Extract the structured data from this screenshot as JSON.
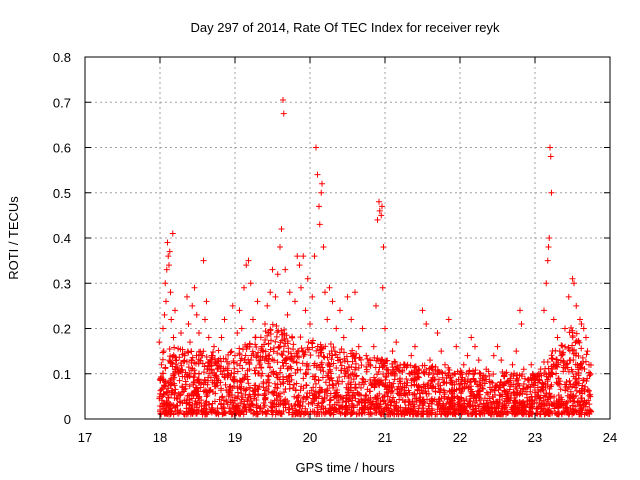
{
  "chart_data": {
    "type": "scatter",
    "title": "Day 297 of 2014, Rate Of TEC Index for receiver reyk",
    "xlabel": "GPS time / hours",
    "ylabel": "ROTI / TECUs",
    "xlim": [
      17,
      24
    ],
    "ylim": [
      0,
      0.8
    ],
    "x_ticks": [
      17,
      18,
      19,
      20,
      21,
      22,
      23,
      24
    ],
    "x_tick_labels": [
      "17",
      "18",
      "19",
      "20",
      "21",
      "22",
      "23",
      "24"
    ],
    "y_ticks": [
      0,
      0.1,
      0.2,
      0.3,
      0.4,
      0.5,
      0.6,
      0.7,
      0.8
    ],
    "y_tick_labels": [
      "0",
      "0.1",
      "0.2",
      "0.3",
      "0.4",
      "0.5",
      "0.6",
      "0.7",
      "0.8"
    ],
    "grid": true,
    "marker": "+",
    "colors": {
      "points": "#ff0000",
      "grid": "#a0a0a0",
      "axes": "#000000"
    },
    "series": [
      {
        "name": "ROTI",
        "points": [
          [
            17.99,
            0.17
          ],
          [
            18.0,
            0.02
          ],
          [
            18.01,
            0.09
          ],
          [
            18.02,
            0.12
          ],
          [
            18.03,
            0.05
          ],
          [
            18.04,
            0.2
          ],
          [
            18.05,
            0.15
          ],
          [
            18.06,
            0.23
          ],
          [
            18.07,
            0.3
          ],
          [
            18.08,
            0.26
          ],
          [
            18.09,
            0.33
          ],
          [
            18.1,
            0.39
          ],
          [
            18.11,
            0.36
          ],
          [
            18.12,
            0.34
          ],
          [
            18.13,
            0.37
          ],
          [
            18.14,
            0.28
          ],
          [
            18.15,
            0.22
          ],
          [
            18.17,
            0.41
          ],
          [
            18.18,
            0.18
          ],
          [
            18.2,
            0.24
          ],
          [
            18.22,
            0.13
          ],
          [
            18.25,
            0.1
          ],
          [
            18.28,
            0.19
          ],
          [
            18.3,
            0.07
          ],
          [
            18.33,
            0.14
          ],
          [
            18.36,
            0.27
          ],
          [
            18.38,
            0.21
          ],
          [
            18.4,
            0.17
          ],
          [
            18.43,
            0.25
          ],
          [
            18.46,
            0.29
          ],
          [
            18.49,
            0.23
          ],
          [
            18.52,
            0.19
          ],
          [
            18.55,
            0.14
          ],
          [
            18.58,
            0.35
          ],
          [
            18.6,
            0.22
          ],
          [
            18.62,
            0.26
          ],
          [
            18.65,
            0.18
          ],
          [
            18.68,
            0.11
          ],
          [
            18.72,
            0.16
          ],
          [
            18.75,
            0.08
          ],
          [
            18.78,
            0.13
          ],
          [
            18.82,
            0.18
          ],
          [
            18.86,
            0.22
          ],
          [
            18.9,
            0.1
          ],
          [
            18.93,
            0.06
          ],
          [
            18.97,
            0.25
          ],
          [
            19.0,
            0.14
          ],
          [
            19.03,
            0.19
          ],
          [
            19.06,
            0.24
          ],
          [
            19.09,
            0.2
          ],
          [
            19.12,
            0.29
          ],
          [
            19.15,
            0.34
          ],
          [
            19.18,
            0.35
          ],
          [
            19.21,
            0.3
          ],
          [
            19.24,
            0.22
          ],
          [
            19.27,
            0.18
          ],
          [
            19.3,
            0.26
          ],
          [
            19.33,
            0.12
          ],
          [
            19.36,
            0.16
          ],
          [
            19.4,
            0.21
          ],
          [
            19.43,
            0.25
          ],
          [
            19.47,
            0.28
          ],
          [
            19.5,
            0.33
          ],
          [
            19.54,
            0.27
          ],
          [
            19.57,
            0.32
          ],
          [
            19.6,
            0.38
          ],
          [
            19.62,
            0.42
          ],
          [
            19.64,
            0.705
          ],
          [
            19.65,
            0.675
          ],
          [
            19.67,
            0.33
          ],
          [
            19.7,
            0.23
          ],
          [
            19.73,
            0.28
          ],
          [
            19.76,
            0.18
          ],
          [
            19.8,
            0.26
          ],
          [
            19.83,
            0.36
          ],
          [
            19.86,
            0.34
          ],
          [
            19.88,
            0.29
          ],
          [
            19.91,
            0.36
          ],
          [
            19.94,
            0.24
          ],
          [
            19.97,
            0.31
          ],
          [
            20.0,
            0.21
          ],
          [
            20.03,
            0.27
          ],
          [
            20.06,
            0.36
          ],
          [
            20.08,
            0.6
          ],
          [
            20.1,
            0.54
          ],
          [
            20.12,
            0.47
          ],
          [
            20.13,
            0.43
          ],
          [
            20.15,
            0.5
          ],
          [
            20.16,
            0.52
          ],
          [
            20.18,
            0.38
          ],
          [
            20.2,
            0.28
          ],
          [
            20.23,
            0.22
          ],
          [
            20.26,
            0.29
          ],
          [
            20.3,
            0.26
          ],
          [
            20.35,
            0.2
          ],
          [
            20.4,
            0.24
          ],
          [
            20.45,
            0.18
          ],
          [
            20.5,
            0.27
          ],
          [
            20.55,
            0.22
          ],
          [
            20.6,
            0.28
          ],
          [
            20.65,
            0.16
          ],
          [
            20.7,
            0.2
          ],
          [
            20.75,
            0.14
          ],
          [
            20.8,
            0.12
          ],
          [
            20.85,
            0.16
          ],
          [
            20.88,
            0.25
          ],
          [
            20.9,
            0.44
          ],
          [
            20.92,
            0.48
          ],
          [
            20.93,
            0.46
          ],
          [
            20.95,
            0.45
          ],
          [
            20.96,
            0.47
          ],
          [
            20.97,
            0.29
          ],
          [
            20.98,
            0.38
          ],
          [
            21.0,
            0.2
          ],
          [
            21.05,
            0.1
          ],
          [
            21.1,
            0.15
          ],
          [
            21.15,
            0.17
          ],
          [
            21.2,
            0.09
          ],
          [
            21.25,
            0.12
          ],
          [
            21.3,
            0.08
          ],
          [
            21.35,
            0.14
          ],
          [
            21.4,
            0.16
          ],
          [
            21.45,
            0.11
          ],
          [
            21.5,
            0.24
          ],
          [
            21.55,
            0.21
          ],
          [
            21.6,
            0.13
          ],
          [
            21.65,
            0.1
          ],
          [
            21.7,
            0.19
          ],
          [
            21.75,
            0.15
          ],
          [
            21.8,
            0.12
          ],
          [
            21.85,
            0.22
          ],
          [
            21.9,
            0.08
          ],
          [
            21.95,
            0.16
          ],
          [
            22.0,
            0.1
          ],
          [
            22.05,
            0.12
          ],
          [
            22.1,
            0.14
          ],
          [
            22.15,
            0.18
          ],
          [
            22.2,
            0.16
          ],
          [
            22.25,
            0.13
          ],
          [
            22.3,
            0.09
          ],
          [
            22.35,
            0.11
          ],
          [
            22.4,
            0.07
          ],
          [
            22.45,
            0.14
          ],
          [
            22.5,
            0.16
          ],
          [
            22.55,
            0.13
          ],
          [
            22.6,
            0.1
          ],
          [
            22.65,
            0.08
          ],
          [
            22.7,
            0.12
          ],
          [
            22.75,
            0.15
          ],
          [
            22.8,
            0.24
          ],
          [
            22.82,
            0.21
          ],
          [
            22.85,
            0.11
          ],
          [
            22.9,
            0.07
          ],
          [
            22.95,
            0.12
          ],
          [
            23.0,
            0.09
          ],
          [
            23.05,
            0.1
          ],
          [
            23.1,
            0.08
          ],
          [
            23.12,
            0.24
          ],
          [
            23.15,
            0.3
          ],
          [
            23.17,
            0.35
          ],
          [
            23.18,
            0.38
          ],
          [
            23.19,
            0.4
          ],
          [
            23.2,
            0.6
          ],
          [
            23.21,
            0.58
          ],
          [
            23.22,
            0.5
          ],
          [
            23.25,
            0.22
          ],
          [
            23.3,
            0.18
          ],
          [
            23.35,
            0.14
          ],
          [
            23.4,
            0.2
          ],
          [
            23.45,
            0.27
          ],
          [
            23.5,
            0.31
          ],
          [
            23.52,
            0.3
          ],
          [
            23.55,
            0.25
          ],
          [
            23.6,
            0.22
          ],
          [
            23.62,
            0.21
          ],
          [
            23.65,
            0.2
          ],
          [
            23.68,
            0.18
          ],
          [
            23.7,
            0.15
          ],
          [
            23.72,
            0.12
          ],
          [
            23.74,
            0.1
          ]
        ]
      }
    ],
    "point_cloud": {
      "description": "Dense band of low ROTI values (mostly below 0.15 TECUs) filling the interval",
      "x_range": [
        17.99,
        23.75
      ],
      "count": 2600,
      "typical_max_by_hour": [
        [
          18.0,
          0.15
        ],
        [
          19.0,
          0.14
        ],
        [
          19.5,
          0.2
        ],
        [
          20.0,
          0.17
        ],
        [
          21.0,
          0.12
        ],
        [
          22.0,
          0.1
        ],
        [
          23.0,
          0.09
        ],
        [
          23.5,
          0.2
        ],
        [
          23.75,
          0.12
        ]
      ]
    }
  }
}
